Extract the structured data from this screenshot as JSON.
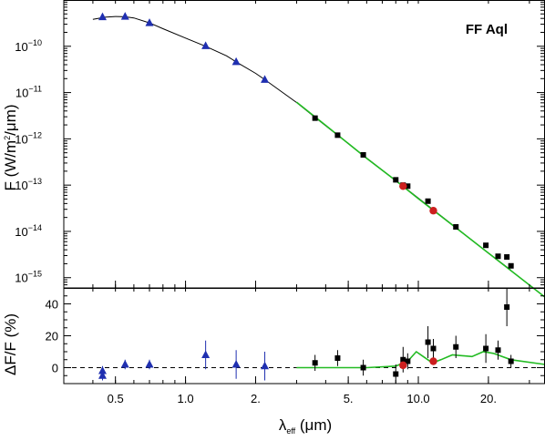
{
  "chart_data": [
    {
      "type": "scatter",
      "panel": "sed",
      "title": "FF Aql",
      "xlabel": "λ_eff (μm)",
      "ylabel": "F (W/m²/μm)",
      "x_scale": "log",
      "y_scale": "log",
      "xlim": [
        0.3,
        35
      ],
      "ylim": [
        6e-16,
        1e-09
      ],
      "y_ticks": [
        {
          "value": 1e-10,
          "mantissa": "10",
          "exponent": "−10"
        },
        {
          "value": 1e-11,
          "mantissa": "10",
          "exponent": "−11"
        },
        {
          "value": 1e-12,
          "mantissa": "10",
          "exponent": "−12"
        },
        {
          "value": 1e-13,
          "mantissa": "10",
          "exponent": "−13"
        },
        {
          "value": 1e-14,
          "mantissa": "10",
          "exponent": "−14"
        },
        {
          "value": 1e-15,
          "mantissa": "10",
          "exponent": "−15"
        }
      ],
      "series": [
        {
          "marker": "triangle",
          "color": "#1f2fb0",
          "x": [
            0.44,
            0.55,
            0.7,
            1.22,
            1.65,
            2.19
          ],
          "y": [
            4.3e-10,
            4.4e-10,
            3.2e-10,
            1.02e-10,
            4.6e-11,
            1.9e-11
          ]
        },
        {
          "marker": "square",
          "color": "#000000",
          "x": [
            3.6,
            4.5,
            5.8,
            8.0,
            8.6,
            9.0,
            11.0,
            11.6,
            14.5,
            19.5,
            22.0,
            24.0,
            25.0
          ],
          "y": [
            2.8e-12,
            1.2e-12,
            4.5e-13,
            1.3e-13,
            1e-13,
            9.5e-14,
            4.5e-14,
            2.8e-14,
            1.25e-14,
            5e-15,
            2.9e-15,
            2.8e-15,
            1.8e-15
          ]
        },
        {
          "marker": "circle",
          "color": "#cc1f1f",
          "x": [
            8.6,
            11.6
          ],
          "y": [
            9.5e-14,
            2.8e-14
          ]
        }
      ],
      "curves": [
        {
          "style": "line",
          "color": "#000000",
          "x": [
            0.4,
            0.45,
            0.5,
            0.55,
            0.6,
            0.7,
            0.8,
            1.0,
            1.22,
            1.5,
            1.65,
            2.0,
            2.19,
            2.6,
            3.0,
            3.6,
            4.5,
            5.8,
            8.0,
            11.0,
            15.0,
            20.0,
            25.0
          ],
          "y": [
            3.8e-10,
            4.25e-10,
            4.4e-10,
            4.35e-10,
            4.1e-10,
            3.2e-10,
            2.4e-10,
            1.5e-10,
            1e-10,
            6.2e-11,
            4.6e-11,
            2.6e-11,
            1.9e-11,
            1.02e-11,
            6.1e-12,
            2.9e-12,
            1.2e-12,
            4.4e-13,
            1.25e-13,
            3.6e-14,
            1.06e-14,
            3.4e-15,
            1.45e-15
          ]
        },
        {
          "style": "line",
          "color": "#22bb22",
          "x": [
            3.0,
            4.0,
            6.0,
            8.0,
            10.0,
            15.0,
            20.0,
            35.0
          ],
          "y": [
            6.2e-12,
            1.95e-12,
            3.8e-13,
            1.25e-13,
            5.1e-14,
            1.05e-14,
            3.4e-15,
            3.8e-16
          ]
        }
      ]
    },
    {
      "type": "scatter",
      "panel": "residuals",
      "xlabel": "λ_eff (μm)",
      "ylabel": "ΔF/F (%)",
      "x_scale": "log",
      "xlim": [
        0.3,
        35
      ],
      "ylim": [
        -10,
        50
      ],
      "x_ticks": [
        {
          "value": 0.5,
          "label": "0.5"
        },
        {
          "value": 1.0,
          "label": "1.0"
        },
        {
          "value": 2.0,
          "label": "2."
        },
        {
          "value": 5.0,
          "label": "5."
        },
        {
          "value": 10.0,
          "label": "10.0"
        },
        {
          "value": 20.0,
          "label": "20."
        }
      ],
      "y_ticks": [
        {
          "value": 0,
          "label": "0"
        },
        {
          "value": 20,
          "label": "20"
        },
        {
          "value": 40,
          "label": "40"
        }
      ],
      "series": [
        {
          "marker": "triangle",
          "color": "#1f2fb0",
          "x": [
            0.44,
            0.44,
            0.55,
            0.7,
            1.22,
            1.65,
            2.19
          ],
          "y": [
            -2,
            -5,
            2,
            2,
            8,
            2,
            1
          ],
          "err": [
            3,
            3,
            3,
            3,
            9,
            9,
            9
          ]
        },
        {
          "marker": "square",
          "color": "#000000",
          "x": [
            3.6,
            4.5,
            5.8,
            8.0,
            8.6,
            9.0,
            11.0,
            11.6,
            14.5,
            19.5,
            22.0,
            24.0,
            25.0
          ],
          "y": [
            3,
            6,
            0,
            -4,
            5,
            4,
            16,
            12,
            13,
            12,
            11,
            38,
            4
          ],
          "err": [
            5,
            5,
            5,
            6,
            8,
            5,
            10,
            6,
            7,
            9,
            6,
            12,
            4
          ]
        },
        {
          "marker": "circle",
          "color": "#cc1f1f",
          "x": [
            8.6,
            11.6
          ],
          "y": [
            1.5,
            4
          ]
        }
      ],
      "curves": [
        {
          "style": "line",
          "color": "#22bb22",
          "x": [
            3.0,
            6.0,
            8.0,
            9.0,
            9.8,
            10.5,
            11.5,
            12.5,
            14.0,
            17.0,
            19.0,
            21.0,
            25.0,
            35.0
          ],
          "y": [
            0,
            0,
            1,
            4,
            10,
            7,
            3,
            5,
            8,
            7,
            10,
            9,
            5,
            2
          ]
        },
        {
          "style": "dashed",
          "color": "#000000",
          "x": [
            0.3,
            35
          ],
          "y": [
            0,
            0
          ]
        }
      ]
    }
  ]
}
